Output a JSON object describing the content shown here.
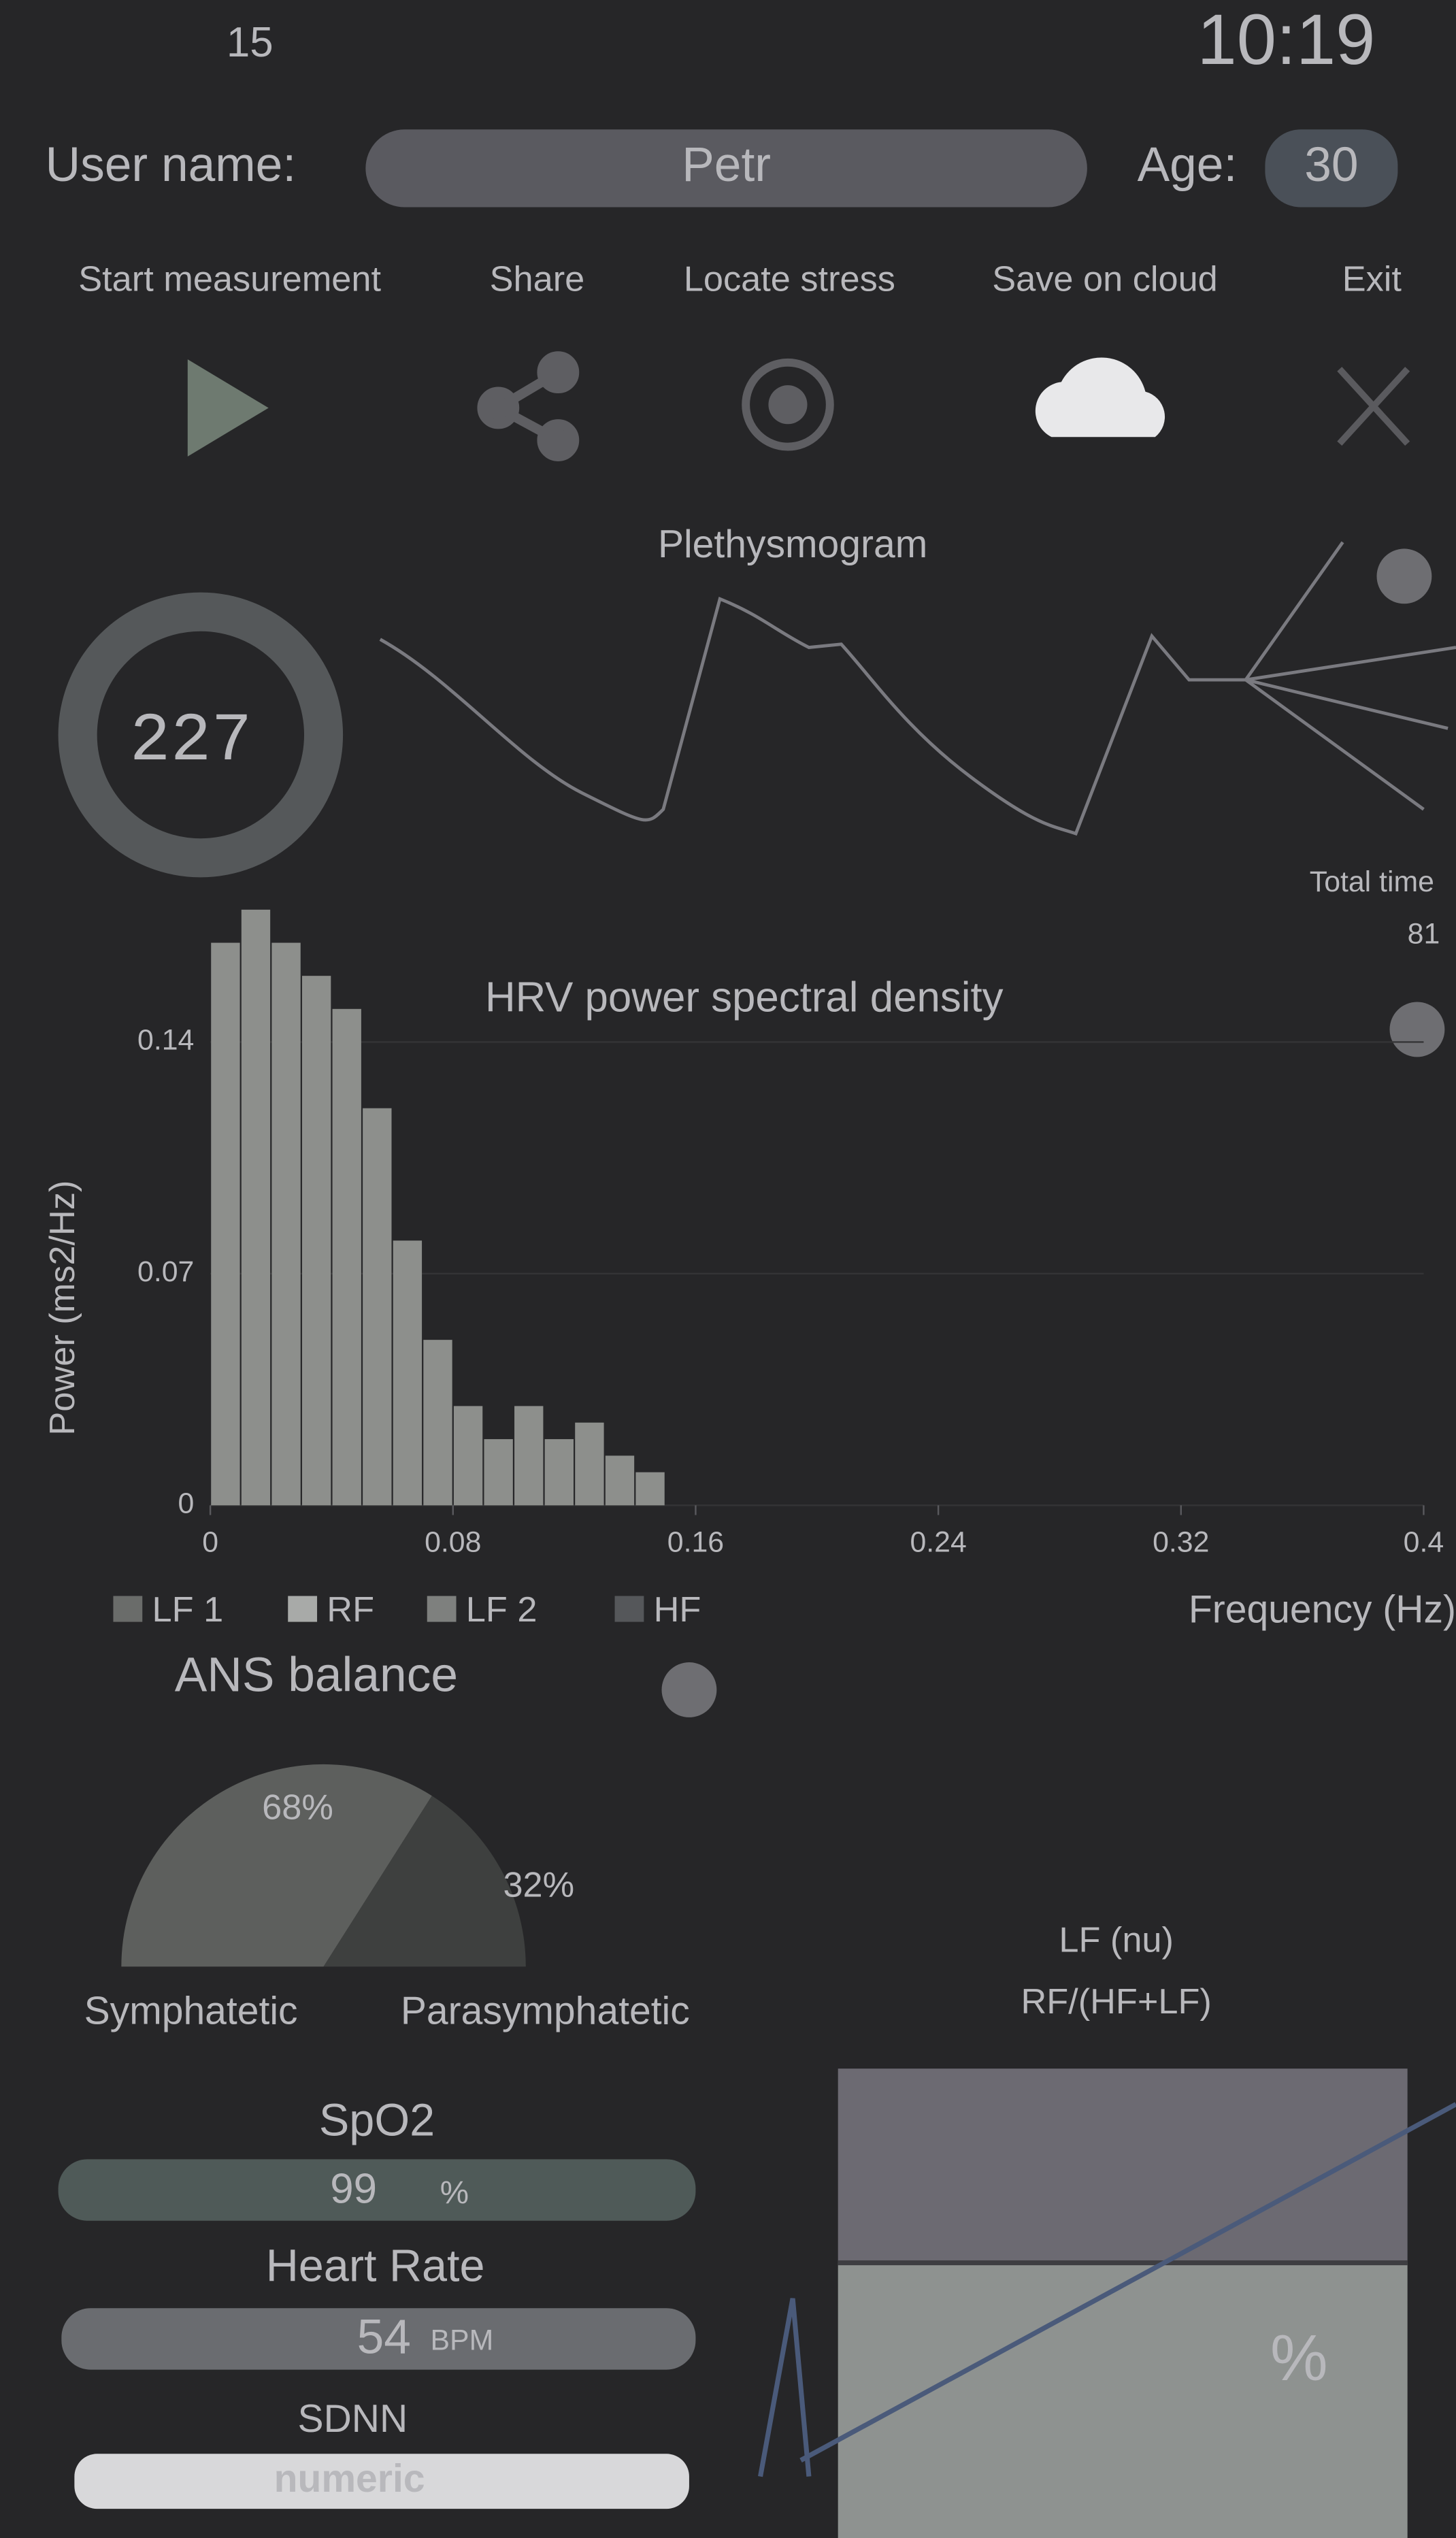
{
  "status_bar": {
    "notification": "15",
    "time": "10:19"
  },
  "user": {
    "name_label": "User name:",
    "name": "Petr",
    "age_label": "Age:",
    "age": "30"
  },
  "menu": [
    "Start measurement",
    "Share",
    "Locate stress",
    "Save on cloud",
    "Exit"
  ],
  "plethysmogram": {
    "title": "Plethysmogram",
    "gauge": "227",
    "total_time_label": "Total time",
    "total_time": "81"
  },
  "hrv_chart": {
    "title": "HRV power spectral density",
    "x_label": "Frequency (Hz)",
    "y_label": "Power (ms2/Hz)",
    "xlim": [
      0,
      0.4
    ],
    "xticks": [
      0,
      0.08,
      0.16,
      0.24,
      0.32,
      0.4
    ],
    "ylim": [
      0,
      0.18
    ],
    "yticks": [
      0,
      0.07,
      0.14
    ],
    "x": [
      0.005,
      0.015,
      0.025,
      0.035,
      0.045,
      0.055,
      0.065,
      0.075,
      0.085,
      0.095,
      0.105,
      0.115,
      0.125,
      0.135,
      0.145
    ],
    "values": [
      0.17,
      0.18,
      0.17,
      0.16,
      0.15,
      0.12,
      0.08,
      0.05,
      0.03,
      0.02,
      0.03,
      0.02,
      0.025,
      0.015,
      0.01
    ],
    "color": "#8d8f8c",
    "legend": [
      "LF 1",
      "RF",
      "LF 2",
      "HF"
    ]
  },
  "ans": {
    "title": "ANS balance",
    "values": [
      68,
      32
    ],
    "value_labels": [
      "68%",
      "32%"
    ],
    "labels": [
      "Symphatetic",
      "Parasymphatetic"
    ],
    "colors": [
      "#5d5f5d",
      "#3e403f"
    ]
  },
  "lf_nu": {
    "title": "LF (nu)",
    "formula": "RF/(HF+LF)",
    "unit": "%"
  },
  "vitals": {
    "spo2_label": "SpO2",
    "spo2": "99",
    "spo2_unit": "%",
    "hr_label": "Heart Rate",
    "hr": "54",
    "hr_unit": "BPM",
    "sdnn_label": "SDNN",
    "sdnn": "numeric"
  }
}
